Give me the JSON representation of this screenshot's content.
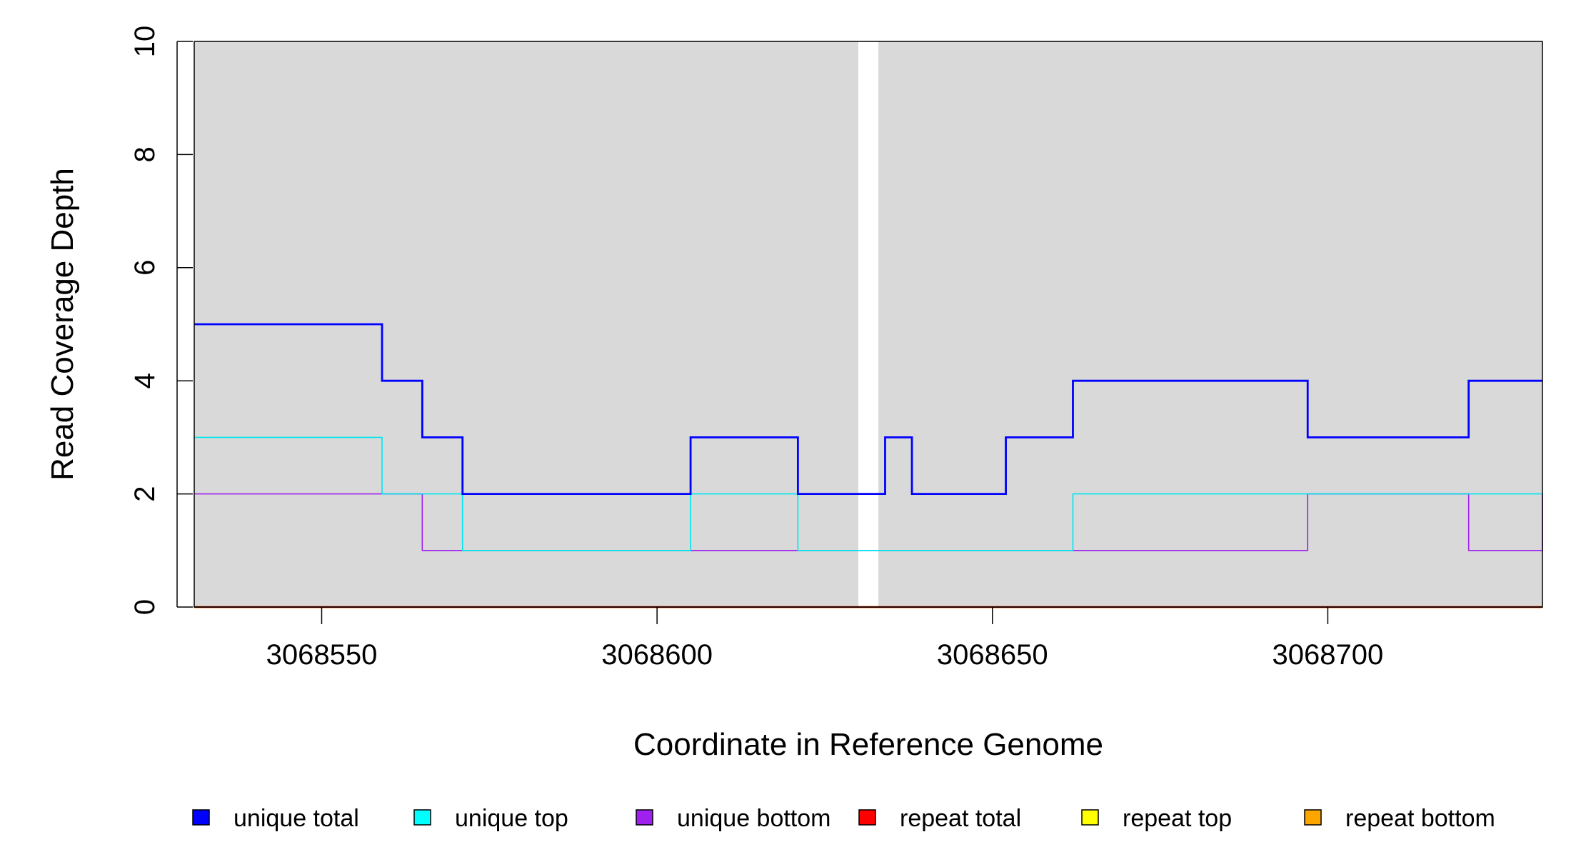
{
  "chart_data": {
    "type": "line",
    "step": true,
    "xlabel": "Coordinate in Reference Genome",
    "ylabel": "Read Coverage Depth",
    "xlim": [
      3068531,
      3068732
    ],
    "ylim": [
      0,
      10
    ],
    "x_ticks": [
      3068550,
      3068600,
      3068650,
      3068700
    ],
    "x_tick_labels": [
      "3068550",
      "3068600",
      "3068650",
      "3068700"
    ],
    "y_ticks": [
      0,
      2,
      4,
      6,
      8,
      10
    ],
    "y_tick_labels": [
      "0",
      "2",
      "4",
      "6",
      "8",
      "10"
    ],
    "background_color": "#d9d9d9",
    "gap_region": [
      3068630,
      3068633
    ],
    "series": [
      {
        "name": "unique total",
        "color": "#0000ff",
        "x": [
          3068531,
          3068559,
          3068565,
          3068571,
          3068605,
          3068621,
          3068634,
          3068638,
          3068652,
          3068662,
          3068697,
          3068721,
          3068732
        ],
        "values": [
          5,
          4,
          3,
          2,
          3,
          2,
          3,
          2,
          3,
          4,
          3,
          4,
          4
        ]
      },
      {
        "name": "unique top",
        "color": "#00e5ee",
        "x": [
          3068531,
          3068559,
          3068571,
          3068605,
          3068621,
          3068634,
          3068638,
          3068652,
          3068662,
          3068732
        ],
        "values": [
          3,
          2,
          1,
          2,
          1,
          1,
          1,
          1,
          2,
          2
        ]
      },
      {
        "name": "unique bottom",
        "color": "#a020f0",
        "x": [
          3068531,
          3068565,
          3068697,
          3068721,
          3068732
        ],
        "values": [
          2,
          1,
          2,
          1,
          2
        ]
      },
      {
        "name": "repeat total",
        "color": "#ff0000",
        "x": [
          3068531,
          3068732
        ],
        "values": [
          0,
          0
        ]
      },
      {
        "name": "repeat top",
        "color": "#ffff00",
        "x": [
          3068531,
          3068732
        ],
        "values": [
          0,
          0
        ]
      },
      {
        "name": "repeat bottom",
        "color": "#ffa500",
        "x": [
          3068531,
          3068732
        ],
        "values": [
          0,
          0
        ]
      }
    ],
    "legend": {
      "placement": "bottom",
      "items": [
        {
          "label": "unique total",
          "color": "#0000ff"
        },
        {
          "label": "unique top",
          "color": "#00ffff"
        },
        {
          "label": "unique bottom",
          "color": "#a020f0"
        },
        {
          "label": "repeat total",
          "color": "#ff0000"
        },
        {
          "label": "repeat top",
          "color": "#ffff00"
        },
        {
          "label": "repeat bottom",
          "color": "#ffa500"
        }
      ]
    }
  }
}
